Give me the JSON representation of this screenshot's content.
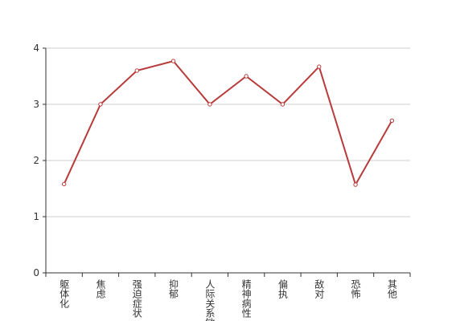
{
  "chart_data": {
    "type": "line",
    "categories": [
      "躯体化",
      "焦虑",
      "强迫症状",
      "抑郁",
      "人际关系敏感",
      "精神病性",
      "偏执",
      "敌对",
      "恐怖",
      "其他"
    ],
    "values": [
      1.58,
      3.0,
      3.6,
      3.77,
      3.0,
      3.5,
      3.0,
      3.67,
      1.57,
      2.71
    ],
    "color": "#b83b3b",
    "ylim": [
      0,
      4
    ],
    "yticks": [
      0,
      1,
      2,
      3,
      4
    ],
    "grid": true
  }
}
